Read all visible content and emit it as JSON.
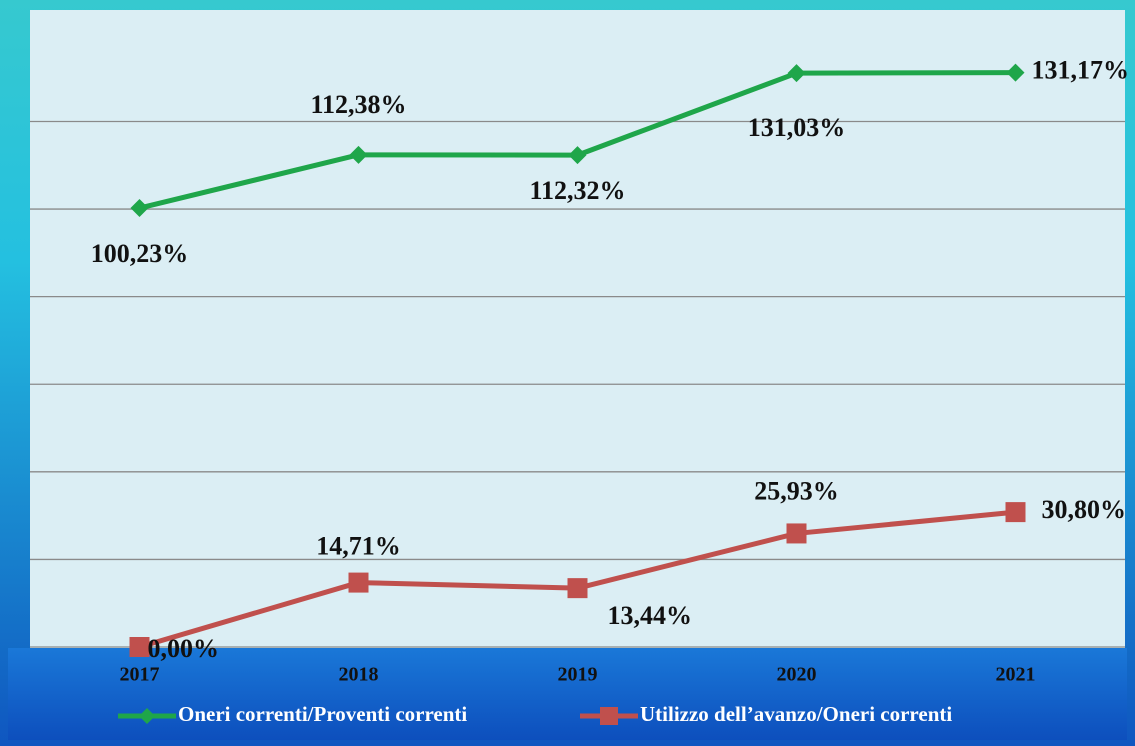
{
  "chart_data": {
    "type": "line",
    "categories": [
      "2017",
      "2018",
      "2019",
      "2020",
      "2021"
    ],
    "series": [
      {
        "name": "Oneri correnti/Proventi correnti",
        "color": "#1fa64a",
        "marker": "diamond",
        "values": [
          100.23,
          112.38,
          112.32,
          131.03,
          131.17
        ],
        "value_labels": [
          "100,23%",
          "112,38%",
          "112,32%",
          "131,03%",
          "131,17%"
        ]
      },
      {
        "name": "Utilizzo dell’avanzo/Oneri correnti",
        "color": "#c0504d",
        "marker": "square",
        "values": [
          0,
          14.71,
          13.44,
          25.93,
          30.8
        ],
        "value_labels": [
          "0,00%",
          "14,71%",
          "13,44%",
          "25,93%",
          "30,80%"
        ]
      }
    ],
    "ylim": [
      0,
      145
    ],
    "yticks": [
      0,
      20,
      40,
      60,
      80,
      100,
      120
    ],
    "grid": true,
    "legend": "bottom"
  }
}
